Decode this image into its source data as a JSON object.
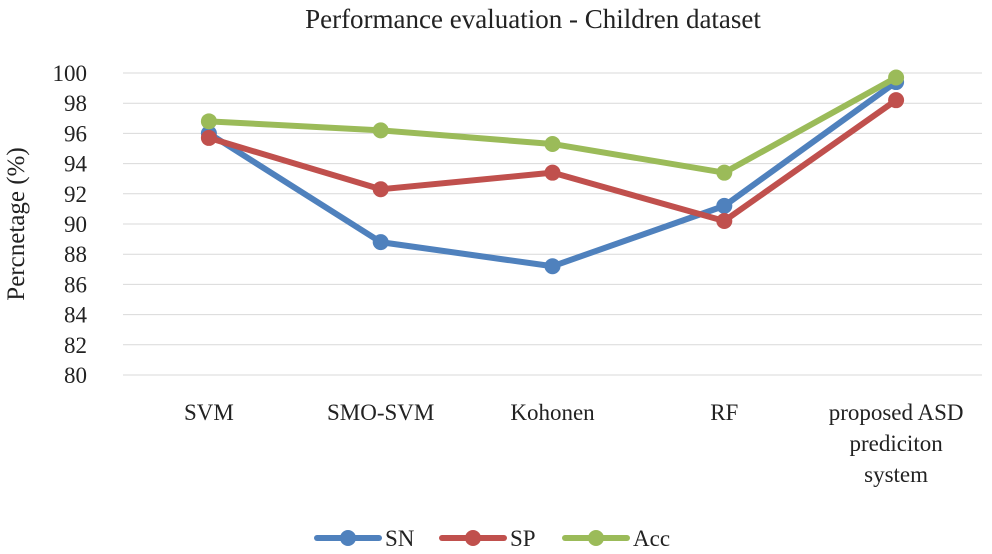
{
  "chart_data": {
    "type": "line",
    "title": "Performance evaluation - Children dataset",
    "xlabel": "",
    "ylabel": "Percnetage (%)",
    "ylim": [
      80,
      100
    ],
    "yticks": [
      "80",
      "82",
      "84",
      "86",
      "88",
      "90",
      "92",
      "94",
      "96",
      "98",
      "100"
    ],
    "grid": true,
    "legend_position": "bottom",
    "categories": [
      [
        "SVM"
      ],
      [
        "SMO-SVM"
      ],
      [
        "Kohonen"
      ],
      [
        "RF"
      ],
      [
        "proposed ASD",
        "prediciton",
        "system"
      ]
    ],
    "series": [
      {
        "name": "SN",
        "color": "#4f81bd",
        "values": [
          96.0,
          88.8,
          87.2,
          91.2,
          99.4
        ]
      },
      {
        "name": "SP",
        "color": "#c0504d",
        "values": [
          95.7,
          92.3,
          93.4,
          90.2,
          98.2
        ]
      },
      {
        "name": "Acc",
        "color": "#9bbb59",
        "values": [
          96.8,
          96.2,
          95.3,
          93.4,
          99.7
        ]
      }
    ]
  }
}
